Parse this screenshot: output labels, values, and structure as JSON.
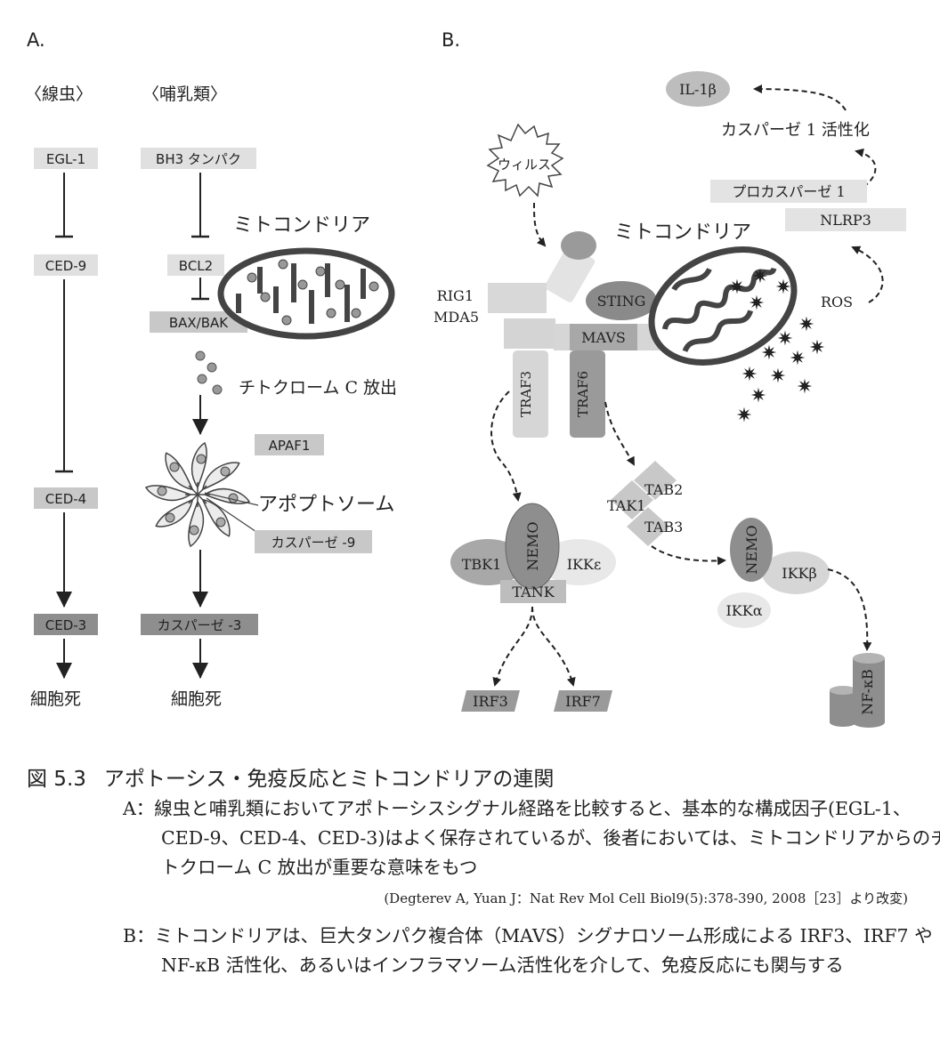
{
  "panel_a": {
    "label": "A.",
    "nematode_header": "〈線虫〉",
    "mammal_header": "〈哺乳類〉",
    "nematode": [
      "EGL-1",
      "CED-9",
      "CED-4",
      "CED-3",
      "細胞死"
    ],
    "mammal": {
      "bh3": "BH3 タンパク",
      "bcl2": "BCL2",
      "baxbak": "BAX/BAK",
      "mito": "ミトコンドリア",
      "cytc": "チトクローム C 放出",
      "apaf1": "APAF1",
      "apoptosome": "アポプトソーム",
      "casp9": "カスパーゼ -9",
      "casp3": "カスパーゼ -3",
      "death": "細胞死"
    }
  },
  "panel_b": {
    "label": "B.",
    "virus": "ウィルス",
    "mito": "ミトコンドリア",
    "rig1": "RIG1",
    "mda5": "MDA5",
    "sting": "STING",
    "mavs": "MAVS",
    "traf3": "TRAF3",
    "traf6": "TRAF6",
    "il1b": "IL-1β",
    "casp1_act": "カスパーゼ 1 活性化",
    "procasp1": "プロカスパーゼ 1",
    "nlrp3": "NLRP3",
    "ros": "ROS",
    "tbk1": "TBK1",
    "nemo": "NEMO",
    "ikke": "IKKε",
    "tank": "TANK",
    "tab2": "TAB2",
    "tak1": "TAK1",
    "tab3": "TAB3",
    "ikkb": "IKKβ",
    "ikka": "IKKα",
    "irf3": "IRF3",
    "irf7": "IRF7",
    "nfkb": "NF-κB"
  },
  "caption": {
    "fig_num": "図 5.3",
    "title": "アポトーシス・免疫反応とミトコンドリアの連関",
    "a_text": "A：線虫と哺乳類においてアポトーシスシグナル経路を比較すると、基本的な構成因子(EGL-1、CED-9、CED-4、CED-3)はよく保存されているが、後者においては、ミトコンドリアからのチトクローム C 放出が重要な意味をもつ",
    "a_cite": "(Degterev A, Yuan J：Nat Rev Mol Cell Biol9(5):378-390, 2008［23］より改変)",
    "b_text": "B：ミトコンドリアは、巨大タンパク複合体（MAVS）シグナロソーム形成による IRF3、IRF7 や NF-κB 活性化、あるいはインフラマソーム活性化を介して、免疫反応にも関与する"
  },
  "colors": {
    "light_box": "#e3e3e3",
    "mid_box": "#bdbdbd",
    "dark_box": "#8e8e8e",
    "line": "#222222"
  }
}
